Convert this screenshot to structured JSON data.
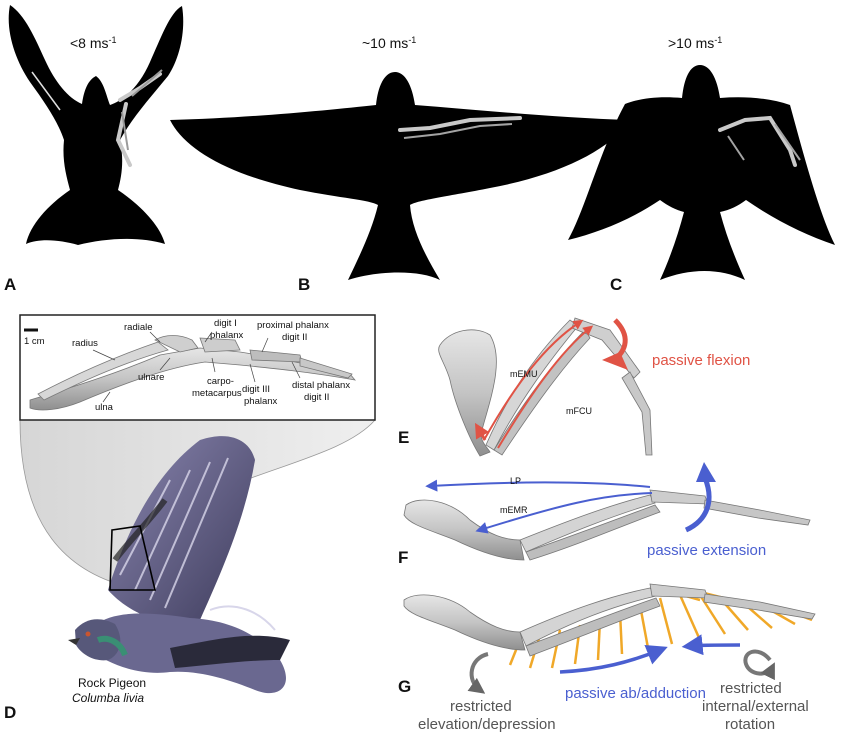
{
  "panels": {
    "a": {
      "letter": "A",
      "speed": "<8 ms",
      "exp": "-1"
    },
    "b": {
      "letter": "B",
      "speed": "~10 ms",
      "exp": "-1"
    },
    "c": {
      "letter": "C",
      "speed": ">10 ms",
      "exp": "-1"
    },
    "d": {
      "letter": "D"
    },
    "e": {
      "letter": "E"
    },
    "f": {
      "letter": "F"
    },
    "g": {
      "letter": "G"
    }
  },
  "skeleton_labels": {
    "scale": "1 cm",
    "radius": "radius",
    "radiale": "radiale",
    "digit_i_1": "digit I",
    "digit_i_2": "phalanx",
    "proximal_1": "proximal phalanx",
    "proximal_2": "digit II",
    "ulnare": "ulnare",
    "carpo_1": "carpo-",
    "carpo_2": "metacarpus",
    "digit_iii_1": "digit III",
    "digit_iii_2": "phalanx",
    "distal_1": "distal phalanx",
    "distal_2": "digit II",
    "ulna": "ulna"
  },
  "species": {
    "common": "Rock Pigeon",
    "latin": "Columba livia"
  },
  "panel_e": {
    "muscle1": "mEMU",
    "muscle2": "mFCU",
    "motion": "passive flexion",
    "color": "#e05345"
  },
  "panel_f": {
    "muscle1": "LP",
    "muscle2": "mEMR",
    "motion": "passive extension",
    "color": "#4a5fd0"
  },
  "panel_g": {
    "motion": "passive ab/adduction",
    "left_1": "restricted",
    "left_2": "elevation/depression",
    "right_1": "restricted",
    "right_2": "internal/external",
    "right_3": "rotation",
    "feather_color": "#f0a828"
  }
}
